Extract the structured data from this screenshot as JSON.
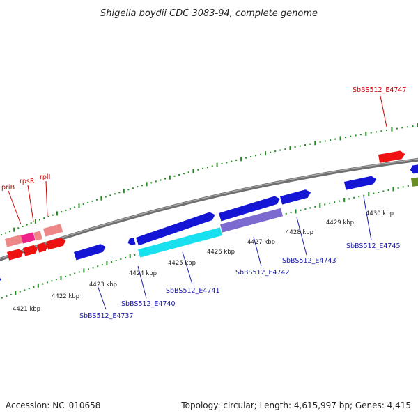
{
  "title": "Shigella boydii CDC 3083-94, complete genome",
  "footer": {
    "accession": "Accession: NC_010658",
    "summary": "Topology: circular; Length: 4,615,997 bp; Genes: 4,415"
  },
  "colors": {
    "backbone": "#808080",
    "tick": "#1f8a1f",
    "gene_blue": "#1515d6",
    "gene_red": "#ee1111",
    "gene_pink": "#ee8888",
    "gene_magenta": "#ee2288",
    "gene_cyan": "#19e0ee",
    "gene_lavender": "#7d6ad0",
    "gene_olive": "#6b8e23",
    "label_red": "#cc0000",
    "label_blue": "#1a1aa6"
  },
  "kbp_labels": [
    {
      "id": "4421",
      "text": "4421 kbp"
    },
    {
      "id": "4422",
      "text": "4422 kbp"
    },
    {
      "id": "4423",
      "text": "4423 kbp"
    },
    {
      "id": "4424",
      "text": "4424 kbp"
    },
    {
      "id": "4425",
      "text": "4425 kbp"
    },
    {
      "id": "4426",
      "text": "4426 kbp"
    },
    {
      "id": "4427",
      "text": "4427 kbp"
    },
    {
      "id": "4428",
      "text": "4428 kbp"
    },
    {
      "id": "4429",
      "text": "4429 kbp"
    },
    {
      "id": "4430",
      "text": "4430 kbp"
    }
  ],
  "gene_labels": [
    {
      "id": "pri-b",
      "text": "priB",
      "color": "red"
    },
    {
      "id": "rps-r",
      "text": "rpsR",
      "color": "red"
    },
    {
      "id": "rpl-i",
      "text": "rplI",
      "color": "red"
    },
    {
      "id": "e4747",
      "text": "SbBS512_E4747",
      "color": "red"
    },
    {
      "id": "e4737",
      "text": "SbBS512_E4737",
      "color": "blue"
    },
    {
      "id": "e4740",
      "text": "SbBS512_E4740",
      "color": "blue"
    },
    {
      "id": "e4741",
      "text": "SbBS512_E4741",
      "color": "blue"
    },
    {
      "id": "e4742",
      "text": "SbBS512_E4742",
      "color": "blue"
    },
    {
      "id": "e4743",
      "text": "SbBS512_E4743",
      "color": "blue"
    },
    {
      "id": "e4745",
      "text": "SbBS512_E4745",
      "color": "blue"
    }
  ]
}
